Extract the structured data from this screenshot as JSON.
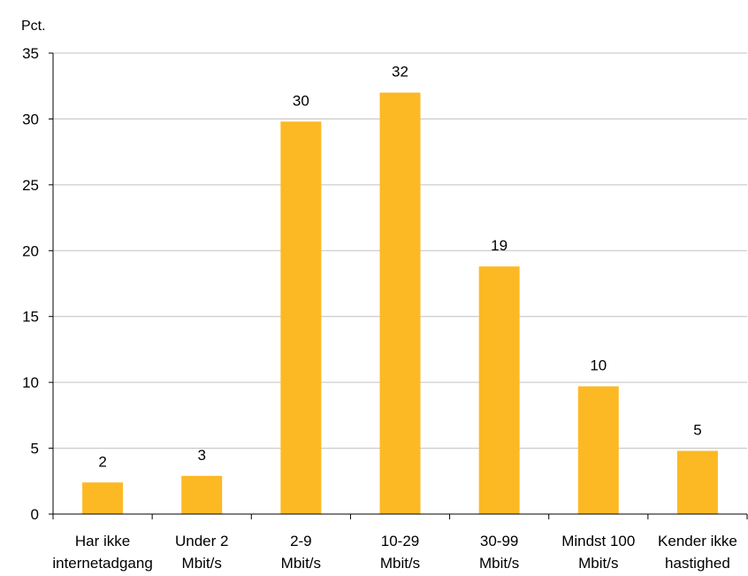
{
  "chart_data": {
    "type": "bar",
    "unit_label": "Pct.",
    "categories": [
      [
        "Har ikke",
        "internetadgang"
      ],
      [
        "Under 2",
        "Mbit/s"
      ],
      [
        "2-9",
        "Mbit/s"
      ],
      [
        "10-29",
        "Mbit/s"
      ],
      [
        "30-99",
        "Mbit/s"
      ],
      [
        "Mindst 100",
        "Mbit/s"
      ],
      [
        "Kender ikke",
        "hastighed"
      ]
    ],
    "values": [
      2.4,
      2.9,
      29.8,
      32.0,
      18.8,
      9.7,
      4.8
    ],
    "data_labels": [
      "2",
      "3",
      "30",
      "32",
      "19",
      "10",
      "5"
    ],
    "ylim": [
      0,
      35
    ],
    "yticks": [
      0,
      5,
      10,
      15,
      20,
      25,
      30,
      35
    ],
    "grid": true,
    "bar_color": "#FDB924",
    "grid_color": "#C0C0C0",
    "axis_color": "#000000"
  }
}
